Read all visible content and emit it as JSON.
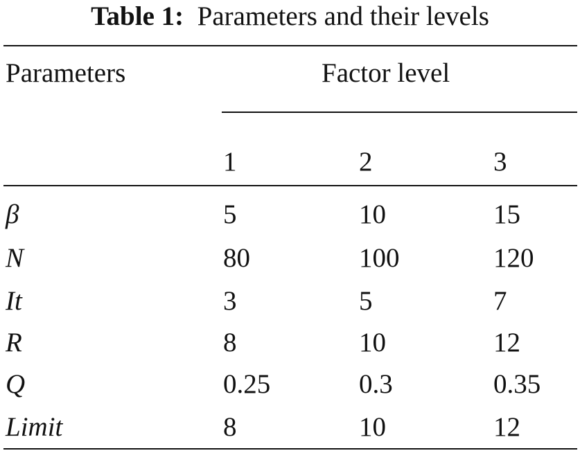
{
  "title": {
    "label": "Table 1:",
    "text": "Parameters and their levels"
  },
  "table": {
    "header": {
      "parameters": "Parameters",
      "factor_level": "Factor level",
      "levels": [
        "1",
        "2",
        "3"
      ]
    },
    "rows": [
      [
        "β",
        "5",
        "10",
        "15"
      ],
      [
        "N",
        "80",
        "100",
        "120"
      ],
      [
        "It",
        "3",
        "5",
        "7"
      ],
      [
        "R",
        "8",
        "10",
        "12"
      ],
      [
        "Q",
        "0.25",
        "0.3",
        "0.35"
      ],
      [
        "Limit",
        "8",
        "10",
        "12"
      ]
    ]
  }
}
